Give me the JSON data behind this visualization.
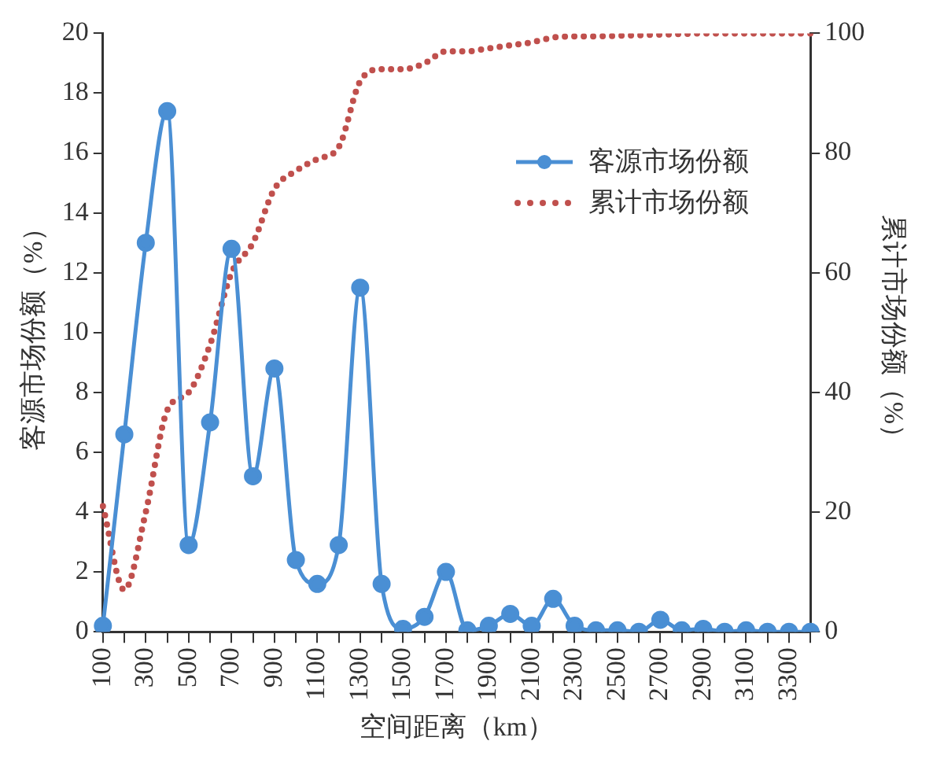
{
  "chart_data": {
    "type": "line",
    "xlabel": "空间距离（km）",
    "ylabel": "客源市场份额（%）",
    "y2label": "累计市场份额（%）",
    "categories": [
      "100",
      null,
      "300",
      null,
      "500",
      null,
      "700",
      null,
      "900",
      null,
      "1100",
      null,
      "1300",
      null,
      "1500",
      null,
      "1700",
      null,
      "1900",
      null,
      "2100",
      null,
      "2300",
      null,
      "2500",
      null,
      "2700",
      null,
      "2900",
      null,
      "3100",
      null,
      "3300",
      null
    ],
    "series": [
      {
        "name": "客源市场份额",
        "color": "#4a8fd4",
        "marker": "circle",
        "line_style": "solid",
        "values": [
          0.2,
          6.6,
          13.0,
          17.4,
          2.9,
          7.0,
          12.8,
          5.2,
          8.8,
          2.4,
          1.6,
          2.9,
          11.5,
          1.6,
          0.1,
          0.5,
          2.0,
          0.05,
          0.2,
          0.6,
          0.2,
          1.1,
          0.2,
          0.05,
          0.05,
          0.0,
          0.4,
          0.05,
          0.1,
          0.0,
          0.05,
          0.0,
          0.0,
          0.0
        ]
      },
      {
        "name": "累计市场份额",
        "color": "#c0504d",
        "marker": "none",
        "line_style": "dotted",
        "axis": "y2",
        "values": [
          21,
          7,
          20,
          37,
          40,
          48,
          60,
          65,
          74,
          77,
          79,
          81,
          92,
          94,
          94,
          95,
          97,
          97,
          97.5,
          98,
          98.5,
          99.3,
          99.5,
          99.5,
          99.6,
          99.7,
          99.8,
          99.9,
          100,
          100,
          100,
          100,
          100,
          100
        ]
      }
    ],
    "ylim": [
      0,
      20
    ],
    "yticks": [
      0,
      2,
      4,
      6,
      8,
      10,
      12,
      14,
      16,
      18,
      20
    ],
    "y2lim": [
      0,
      100
    ],
    "y2ticks": [
      0,
      20,
      40,
      60,
      80,
      100
    ],
    "grid": false,
    "legend": "top right"
  }
}
